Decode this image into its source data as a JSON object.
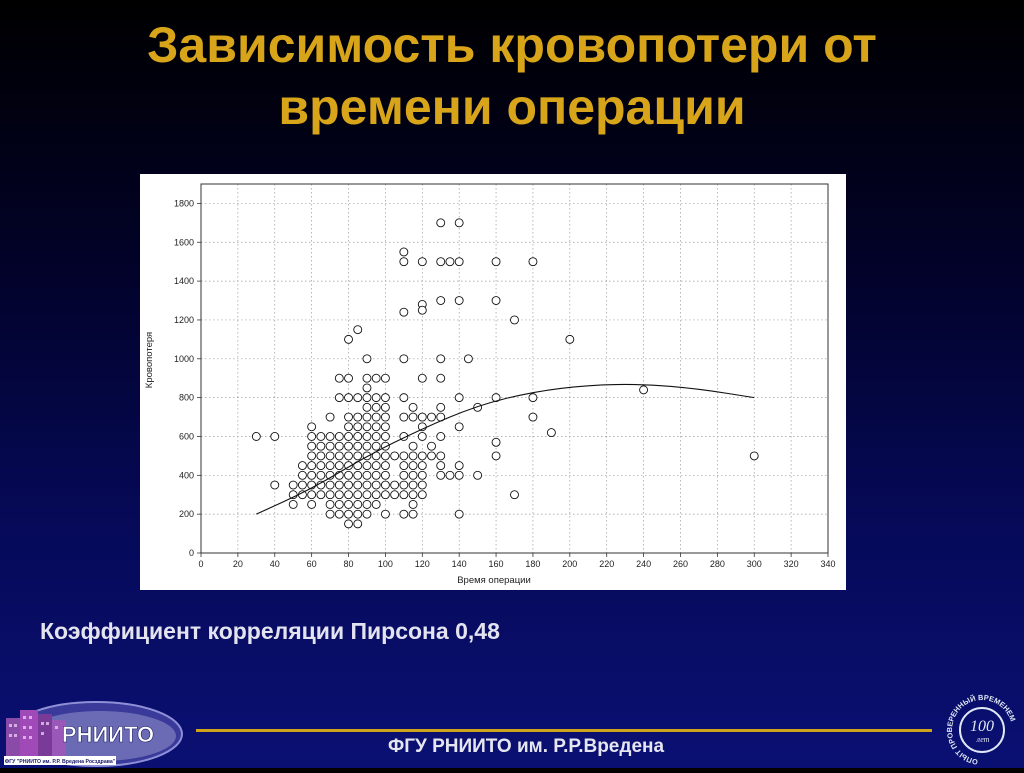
{
  "slide": {
    "title_line1": "Зависимость кровопотери от",
    "title_line2": "времени операции",
    "correlation_text": "Коэффициент корреляции Пирсона 0,48",
    "footer_text": "ФГУ РНИИТО им. Р.Р.Вредена",
    "logo_left_text": "РНИИТО",
    "logo_left_caption": "ФГУ \"РНИИТО им. Р.Р. Вредена Росздрава\"",
    "logo_right_number": "100",
    "logo_right_sub": "лет",
    "logo_right_ring": "ОПЫТ ПРОВЕРЕННЫЙ ВРЕМЕНЕМ"
  },
  "chart_data": {
    "type": "scatter",
    "title": "",
    "xlabel": "Время операции",
    "ylabel": "Кровопотеря",
    "xlim": [
      0,
      340
    ],
    "ylim": [
      0,
      1900
    ],
    "xticks": [
      0,
      20,
      40,
      60,
      80,
      100,
      120,
      140,
      160,
      180,
      200,
      220,
      240,
      260,
      280,
      300,
      320,
      340
    ],
    "yticks": [
      0,
      200,
      400,
      600,
      800,
      1000,
      1200,
      1400,
      1600,
      1800
    ],
    "grid": true,
    "points": [
      [
        30,
        600
      ],
      [
        40,
        600
      ],
      [
        40,
        350
      ],
      [
        50,
        350
      ],
      [
        50,
        300
      ],
      [
        50,
        250
      ],
      [
        55,
        450
      ],
      [
        55,
        400
      ],
      [
        55,
        350
      ],
      [
        55,
        300
      ],
      [
        60,
        650
      ],
      [
        60,
        600
      ],
      [
        60,
        550
      ],
      [
        60,
        500
      ],
      [
        60,
        450
      ],
      [
        60,
        400
      ],
      [
        60,
        350
      ],
      [
        60,
        300
      ],
      [
        60,
        250
      ],
      [
        65,
        600
      ],
      [
        65,
        550
      ],
      [
        65,
        500
      ],
      [
        65,
        450
      ],
      [
        65,
        400
      ],
      [
        65,
        350
      ],
      [
        65,
        300
      ],
      [
        70,
        700
      ],
      [
        70,
        600
      ],
      [
        70,
        550
      ],
      [
        70,
        500
      ],
      [
        70,
        450
      ],
      [
        70,
        400
      ],
      [
        70,
        350
      ],
      [
        70,
        300
      ],
      [
        70,
        250
      ],
      [
        70,
        200
      ],
      [
        75,
        900
      ],
      [
        75,
        800
      ],
      [
        75,
        600
      ],
      [
        75,
        550
      ],
      [
        75,
        500
      ],
      [
        75,
        450
      ],
      [
        75,
        400
      ],
      [
        75,
        350
      ],
      [
        75,
        300
      ],
      [
        75,
        250
      ],
      [
        75,
        200
      ],
      [
        80,
        1100
      ],
      [
        80,
        900
      ],
      [
        80,
        800
      ],
      [
        80,
        700
      ],
      [
        80,
        650
      ],
      [
        80,
        600
      ],
      [
        80,
        550
      ],
      [
        80,
        500
      ],
      [
        80,
        450
      ],
      [
        80,
        400
      ],
      [
        80,
        350
      ],
      [
        80,
        300
      ],
      [
        80,
        250
      ],
      [
        80,
        200
      ],
      [
        80,
        150
      ],
      [
        85,
        1150
      ],
      [
        85,
        800
      ],
      [
        85,
        700
      ],
      [
        85,
        650
      ],
      [
        85,
        600
      ],
      [
        85,
        550
      ],
      [
        85,
        500
      ],
      [
        85,
        450
      ],
      [
        85,
        400
      ],
      [
        85,
        350
      ],
      [
        85,
        300
      ],
      [
        85,
        250
      ],
      [
        85,
        200
      ],
      [
        85,
        150
      ],
      [
        90,
        1000
      ],
      [
        90,
        900
      ],
      [
        90,
        850
      ],
      [
        90,
        800
      ],
      [
        90,
        750
      ],
      [
        90,
        700
      ],
      [
        90,
        650
      ],
      [
        90,
        600
      ],
      [
        90,
        550
      ],
      [
        90,
        500
      ],
      [
        90,
        450
      ],
      [
        90,
        400
      ],
      [
        90,
        350
      ],
      [
        90,
        300
      ],
      [
        90,
        250
      ],
      [
        90,
        200
      ],
      [
        95,
        900
      ],
      [
        95,
        800
      ],
      [
        95,
        750
      ],
      [
        95,
        700
      ],
      [
        95,
        650
      ],
      [
        95,
        600
      ],
      [
        95,
        550
      ],
      [
        95,
        500
      ],
      [
        95,
        450
      ],
      [
        95,
        400
      ],
      [
        95,
        350
      ],
      [
        95,
        300
      ],
      [
        95,
        250
      ],
      [
        100,
        900
      ],
      [
        100,
        800
      ],
      [
        100,
        750
      ],
      [
        100,
        700
      ],
      [
        100,
        650
      ],
      [
        100,
        600
      ],
      [
        100,
        550
      ],
      [
        100,
        500
      ],
      [
        100,
        450
      ],
      [
        100,
        400
      ],
      [
        100,
        350
      ],
      [
        100,
        300
      ],
      [
        100,
        200
      ],
      [
        105,
        500
      ],
      [
        105,
        350
      ],
      [
        105,
        300
      ],
      [
        110,
        1550
      ],
      [
        110,
        1500
      ],
      [
        110,
        1240
      ],
      [
        110,
        1000
      ],
      [
        110,
        800
      ],
      [
        110,
        700
      ],
      [
        110,
        600
      ],
      [
        110,
        500
      ],
      [
        110,
        450
      ],
      [
        110,
        400
      ],
      [
        110,
        350
      ],
      [
        110,
        300
      ],
      [
        110,
        200
      ],
      [
        115,
        750
      ],
      [
        115,
        700
      ],
      [
        115,
        550
      ],
      [
        115,
        500
      ],
      [
        115,
        450
      ],
      [
        115,
        400
      ],
      [
        115,
        350
      ],
      [
        115,
        300
      ],
      [
        115,
        250
      ],
      [
        115,
        200
      ],
      [
        120,
        1500
      ],
      [
        120,
        1280
      ],
      [
        120,
        1250
      ],
      [
        120,
        900
      ],
      [
        120,
        700
      ],
      [
        120,
        650
      ],
      [
        120,
        600
      ],
      [
        120,
        500
      ],
      [
        120,
        450
      ],
      [
        120,
        400
      ],
      [
        120,
        350
      ],
      [
        120,
        300
      ],
      [
        125,
        700
      ],
      [
        125,
        550
      ],
      [
        125,
        500
      ],
      [
        130,
        1700
      ],
      [
        130,
        1500
      ],
      [
        130,
        1300
      ],
      [
        130,
        1000
      ],
      [
        130,
        900
      ],
      [
        130,
        750
      ],
      [
        130,
        700
      ],
      [
        130,
        600
      ],
      [
        130,
        500
      ],
      [
        130,
        450
      ],
      [
        130,
        400
      ],
      [
        135,
        1500
      ],
      [
        135,
        400
      ],
      [
        140,
        1700
      ],
      [
        140,
        1500
      ],
      [
        140,
        1300
      ],
      [
        140,
        800
      ],
      [
        140,
        650
      ],
      [
        140,
        450
      ],
      [
        140,
        400
      ],
      [
        140,
        200
      ],
      [
        145,
        1000
      ],
      [
        150,
        750
      ],
      [
        150,
        400
      ],
      [
        160,
        1500
      ],
      [
        160,
        1300
      ],
      [
        160,
        800
      ],
      [
        160,
        570
      ],
      [
        160,
        500
      ],
      [
        170,
        1200
      ],
      [
        170,
        300
      ],
      [
        180,
        1500
      ],
      [
        180,
        800
      ],
      [
        180,
        700
      ],
      [
        190,
        620
      ],
      [
        200,
        1100
      ],
      [
        240,
        840
      ],
      [
        300,
        500
      ]
    ],
    "trendline": {
      "type": "quadratic",
      "x": [
        30,
        60,
        90,
        120,
        150,
        180,
        210,
        240,
        270,
        300
      ],
      "y": [
        200,
        330,
        500,
        640,
        760,
        830,
        865,
        870,
        845,
        800
      ]
    }
  }
}
